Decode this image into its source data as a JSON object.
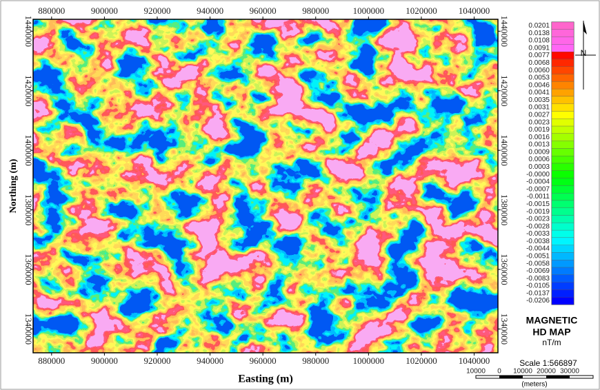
{
  "map": {
    "x_label": "Easting (m)",
    "y_label": "Northing (m)",
    "xlim": [
      873000,
      1049000
    ],
    "ylim": [
      1332000,
      1444000
    ],
    "xticks": [
      880000,
      900000,
      920000,
      940000,
      960000,
      980000,
      1000000,
      1020000,
      1040000
    ],
    "yticks": [
      1340000,
      1360000,
      1380000,
      1400000,
      1420000,
      1440000
    ]
  },
  "legend": {
    "title_line1": "MAGNETIC",
    "title_line2": "HD MAP",
    "unit": "nT/m",
    "labels": [
      "0.0201",
      "0.0138",
      "0.0108",
      "0.0091",
      "0.0077",
      "0.0068",
      "0.0060",
      "0.0053",
      "0.0046",
      "0.0041",
      "0.0035",
      "0.0031",
      "0.0027",
      "0.0023",
      "0.0019",
      "0.0016",
      "0.0013",
      "0.0009",
      "0.0006",
      "0.0003",
      "-0.0000",
      "-0.0004",
      "-0.0007",
      "-0.0011",
      "-0.0015",
      "-0.0019",
      "-0.0023",
      "-0.0028",
      "-0.0033",
      "-0.0038",
      "-0.0044",
      "-0.0051",
      "-0.0058",
      "-0.0069",
      "-0.0083",
      "-0.0105",
      "-0.0137",
      "-0.0206"
    ]
  },
  "north": "N",
  "scale": {
    "text": "Scale 1:566897",
    "bar_labels": [
      "10000",
      "0",
      "10000",
      "20000",
      "30000"
    ],
    "unit": "(meters)"
  }
}
